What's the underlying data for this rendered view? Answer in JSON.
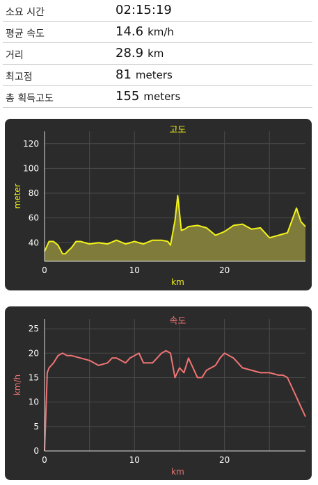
{
  "stats": [
    {
      "label": "소요 시간",
      "value": "02:15:19",
      "unit": ""
    },
    {
      "label": "평균 속도",
      "value": "14.6",
      "unit": "km/h"
    },
    {
      "label": "거리",
      "value": "28.9",
      "unit": "km"
    },
    {
      "label": "최고점",
      "value": "81",
      "unit": "meters"
    },
    {
      "label": "총 획득고도",
      "value": "155",
      "unit": "meters"
    }
  ],
  "colors": {
    "panel_bg": "#2b2b2b",
    "grid": "#4a4a4a",
    "altitude": "#f2f21a",
    "altitude_fill": "#7f7b3a",
    "speed": "#f07474",
    "tick": "#ffffff"
  },
  "chart_data": [
    {
      "type": "area",
      "title": "고도",
      "xlabel": "km",
      "ylabel": "meter",
      "xlim": [
        0,
        29
      ],
      "ylim": [
        25,
        130
      ],
      "xticks": [
        "0",
        "10",
        "20"
      ],
      "yticks": [
        "40",
        "60",
        "80",
        "100",
        "120"
      ],
      "grid": true,
      "x": [
        0,
        0.5,
        1,
        1.5,
        2,
        2.3,
        2.7,
        3,
        3.5,
        4,
        5,
        6,
        7,
        8,
        9,
        10,
        11,
        12,
        13,
        13.7,
        14,
        14.5,
        14.8,
        15.2,
        15.6,
        16,
        17,
        18,
        19,
        20,
        21,
        22,
        23,
        24,
        25,
        26,
        27,
        28,
        28.5,
        29
      ],
      "y": [
        33,
        41,
        41,
        38,
        31,
        31,
        34,
        36,
        41,
        41,
        39,
        40,
        39,
        42,
        39,
        41,
        39,
        42,
        42,
        41,
        38,
        58,
        78,
        50,
        51,
        53,
        54,
        52,
        46,
        49,
        54,
        55,
        51,
        52,
        44,
        46,
        48,
        68,
        57,
        53
      ]
    },
    {
      "type": "line",
      "title": "속도",
      "xlabel": "km",
      "ylabel": "km/h",
      "xlim": [
        0,
        29
      ],
      "ylim": [
        0,
        27
      ],
      "xticks": [
        "0",
        "10",
        "20"
      ],
      "yticks": [
        "0",
        "5",
        "10",
        "15",
        "20",
        "25"
      ],
      "grid": true,
      "x": [
        0,
        0.1,
        0.3,
        0.5,
        1,
        1.5,
        2,
        2.5,
        3,
        4,
        5,
        6,
        7,
        7.5,
        8,
        9,
        9.5,
        10,
        10.5,
        11,
        12,
        13,
        13.5,
        14,
        14.5,
        15,
        15.5,
        16,
        16.5,
        17,
        17.5,
        18,
        19,
        19.5,
        20,
        21,
        22,
        23,
        24,
        25,
        26,
        26.5,
        27,
        27.5,
        28,
        28.5,
        29
      ],
      "y": [
        0,
        5,
        16,
        17,
        18,
        19.5,
        20,
        19.5,
        19.5,
        19,
        18.5,
        17.5,
        18,
        19,
        19,
        18,
        19,
        19.5,
        20,
        18,
        18,
        20,
        20.5,
        20,
        15,
        17,
        16,
        19,
        17,
        15,
        15,
        16.5,
        17.5,
        19,
        20,
        19,
        17,
        16.5,
        16,
        16,
        15.5,
        15.5,
        15,
        13,
        11,
        9,
        7
      ]
    }
  ]
}
